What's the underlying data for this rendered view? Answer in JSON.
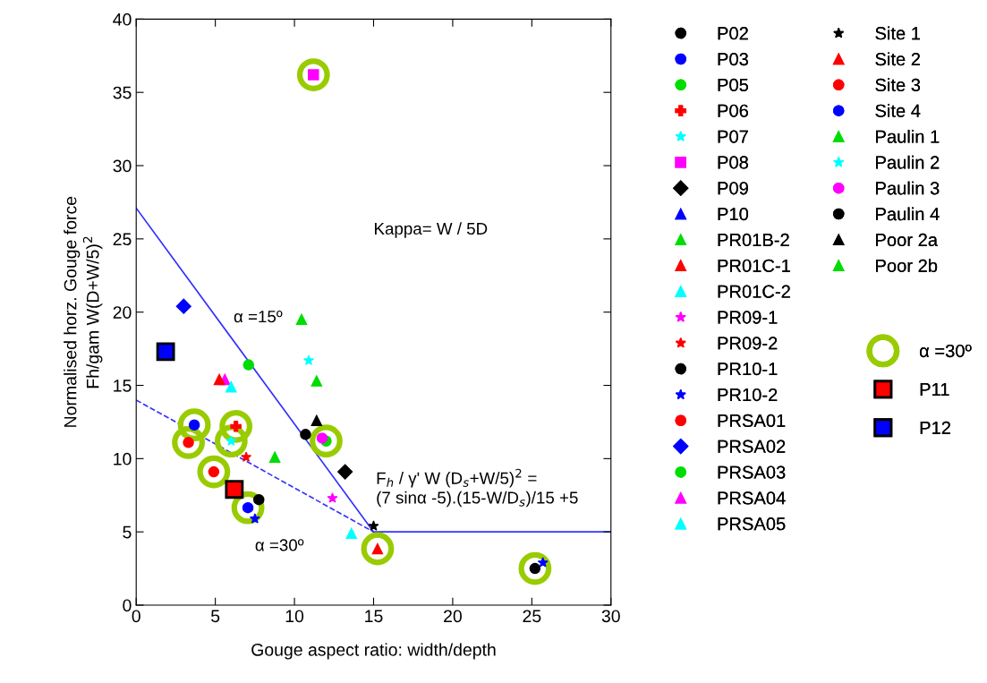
{
  "chart_data": {
    "type": "scatter",
    "xlabel": "Gouge aspect ratio: width/depth",
    "ylabel": "Normalised horz. Gouge force\nFh/gam W(D+W/5)$^{2}$",
    "xlim": [
      0,
      30
    ],
    "ylim": [
      0,
      40
    ],
    "xticks": [
      0,
      5,
      10,
      15,
      20,
      25,
      30
    ],
    "yticks": [
      0,
      5,
      10,
      15,
      20,
      25,
      30,
      35,
      40
    ],
    "grid": false,
    "legend": "right",
    "annotations": [
      "Kappa= W / 5D",
      "α =15º",
      "α =30º",
      "F$_{h}$ / γ' W (D$_{s}$+W/5)$^{2}$ =\n(7 sinα -5).(15-W/D$_{s}$)/15 +5"
    ],
    "series": [
      {
        "name": "P02",
        "color": "#000000",
        "marker": "circle",
        "x": [
          7.75
        ],
        "values": [
          7.2
        ]
      },
      {
        "name": "P03",
        "color": "#0000ff",
        "marker": "circle",
        "x": [
          7.06
        ],
        "values": [
          6.65
        ]
      },
      {
        "name": "P05",
        "color": "#00dd00",
        "marker": "circle",
        "x": [
          12.0
        ],
        "values": [
          11.2
        ]
      },
      {
        "name": "P06",
        "color": "#ff0000",
        "marker": "cross",
        "x": [
          6.3
        ],
        "values": [
          12.2
        ]
      },
      {
        "name": "P07",
        "color": "#00ffff",
        "marker": "star",
        "x": [
          6.0
        ],
        "values": [
          11.2
        ]
      },
      {
        "name": "P08",
        "color": "#ff00ff",
        "marker": "square",
        "x": [
          11.2
        ],
        "values": [
          36.2
        ]
      },
      {
        "name": "P09",
        "color": "#000000",
        "marker": "diamond",
        "x": [
          13.2
        ],
        "values": [
          9.1
        ]
      },
      {
        "name": "P10",
        "color": "#0000ff",
        "marker": "triangle"
      },
      {
        "name": "PR01B-2",
        "color": "#00dd00",
        "marker": "triangle",
        "x": [
          8.76
        ],
        "values": [
          10.1
        ]
      },
      {
        "name": "PR01C-1",
        "color": "#ff0000",
        "marker": "triangle",
        "x": [
          15.25
        ],
        "values": [
          3.85
        ]
      },
      {
        "name": "PR01C-2",
        "color": "#00ffff",
        "marker": "triangle",
        "x": [
          13.6
        ],
        "values": [
          4.9
        ]
      },
      {
        "name": "PR09-1",
        "color": "#ff00ff",
        "marker": "star",
        "x": [
          12.4
        ],
        "values": [
          7.3
        ]
      },
      {
        "name": "PR09-2",
        "color": "#ff0000",
        "marker": "star",
        "x": [
          6.95
        ],
        "values": [
          10.1
        ]
      },
      {
        "name": "PR10-1",
        "color": "#000000",
        "marker": "circle",
        "x": [
          25.2
        ],
        "values": [
          2.5
        ]
      },
      {
        "name": "PR10-2",
        "color": "#0000ff",
        "marker": "star",
        "x": [
          7.5,
          25.7
        ],
        "values": [
          5.9,
          2.9
        ]
      },
      {
        "name": "PRSA01",
        "color": "#ff0000",
        "marker": "circle",
        "x": [
          3.3
        ],
        "values": [
          11.1
        ]
      },
      {
        "name": "PRSA02",
        "color": "#0000ff",
        "marker": "diamond",
        "x": [
          3.0
        ],
        "values": [
          20.4
        ]
      },
      {
        "name": "PRSA03",
        "color": "#00dd00",
        "marker": "circle",
        "x": [
          7.1
        ],
        "values": [
          16.4
        ]
      },
      {
        "name": "PRSA04",
        "color": "#ff00ff",
        "marker": "triangle",
        "x": [
          5.6
        ],
        "values": [
          15.4
        ]
      },
      {
        "name": "PRSA05",
        "color": "#00ffff",
        "marker": "triangle",
        "x": [
          6.0
        ],
        "values": [
          14.9
        ]
      },
      {
        "name": "Site 1",
        "color": "#000000",
        "marker": "star",
        "x": [
          15.0
        ],
        "values": [
          5.4
        ]
      },
      {
        "name": "Site 2",
        "color": "#ff0000",
        "marker": "triangle",
        "x": [
          5.25
        ],
        "values": [
          15.4
        ]
      },
      {
        "name": "Site 3",
        "color": "#ff0000",
        "marker": "circle",
        "x": [
          4.9
        ],
        "values": [
          9.1
        ]
      },
      {
        "name": "Site 4",
        "color": "#0000ff",
        "marker": "circle",
        "x": [
          3.67
        ],
        "values": [
          12.3
        ]
      },
      {
        "name": "Paulin 1",
        "color": "#00dd00",
        "marker": "triangle",
        "x": [
          10.45
        ],
        "values": [
          19.5
        ]
      },
      {
        "name": "Paulin 2",
        "color": "#00ffff",
        "marker": "star",
        "x": [
          10.9
        ],
        "values": [
          16.7
        ]
      },
      {
        "name": "Paulin 3",
        "color": "#ff00ff",
        "marker": "circle",
        "x": [
          11.75
        ],
        "values": [
          11.4
        ]
      },
      {
        "name": "Paulin 4",
        "color": "#000000",
        "marker": "circle",
        "x": [
          10.7
        ],
        "values": [
          11.65
        ]
      },
      {
        "name": "Poor 2a",
        "color": "#000000",
        "marker": "triangle",
        "x": [
          11.4
        ],
        "values": [
          12.6
        ]
      },
      {
        "name": "Poor 2b",
        "color": "#00dd00",
        "marker": "triangle",
        "x": [
          11.4
        ],
        "values": [
          15.3
        ]
      },
      {
        "name": "α =30º",
        "color": "#99cc00",
        "marker": "circle",
        "x": [
          11.2,
          3.67,
          6.3,
          3.3,
          6.0,
          12.0,
          4.9,
          7.06,
          15.25,
          25.2
        ],
        "values": [
          36.2,
          12.3,
          12.2,
          11.1,
          11.2,
          11.2,
          9.1,
          6.65,
          3.85,
          2.5
        ]
      },
      {
        "name": "P11",
        "color": "#ff0000",
        "marker": "square",
        "x": [
          6.2
        ],
        "values": [
          7.9
        ]
      },
      {
        "name": "P12",
        "color": "#0000ff",
        "marker": "square",
        "x": [
          1.86
        ],
        "values": [
          17.3
        ]
      },
      {
        "type": "line",
        "color": "#3333ff",
        "line_style": "solid",
        "marker": "none",
        "x": [
          0,
          15,
          30
        ],
        "values": [
          27.1,
          5,
          5
        ]
      },
      {
        "type": "line",
        "color": "#3333ff",
        "line_style": "dashed",
        "marker": "none",
        "x": [
          0,
          15
        ],
        "values": [
          14.0,
          5
        ]
      }
    ]
  }
}
